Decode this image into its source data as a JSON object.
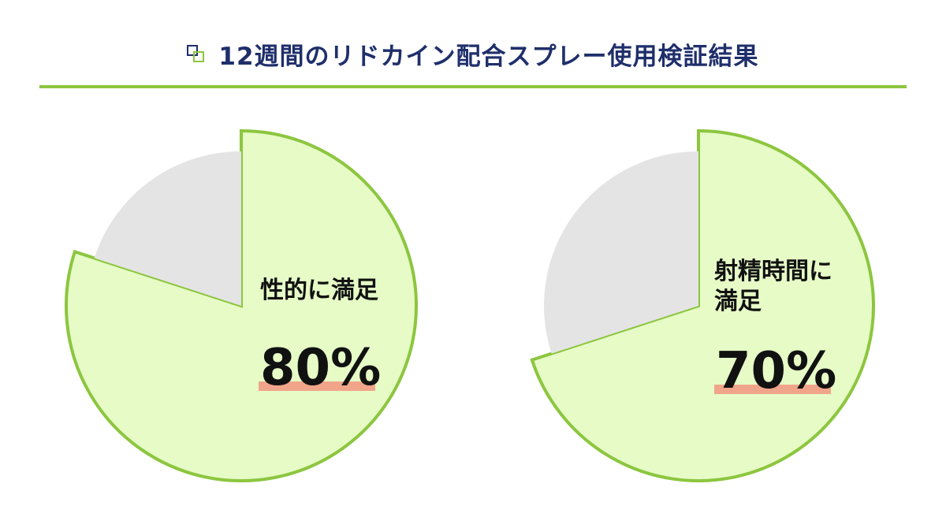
{
  "header": {
    "title": "12週間のリドカイン配合スプレー使用検証結果"
  },
  "colors": {
    "accent_green": "#8cc63f",
    "slice_fill": "#e6fbc6",
    "remainder_fill": "#e4e4e4",
    "underline": "#f0a58a",
    "title_navy": "#1f2f6b"
  },
  "chart_data": [
    {
      "type": "pie",
      "label_lines": [
        "性的に満足"
      ],
      "value_label": "80%",
      "values": [
        80,
        20
      ],
      "highlighted_slice": 0
    },
    {
      "type": "pie",
      "label_lines": [
        "射精時間に",
        "満足"
      ],
      "value_label": "70%",
      "values": [
        70,
        30
      ],
      "highlighted_slice": 0
    }
  ]
}
